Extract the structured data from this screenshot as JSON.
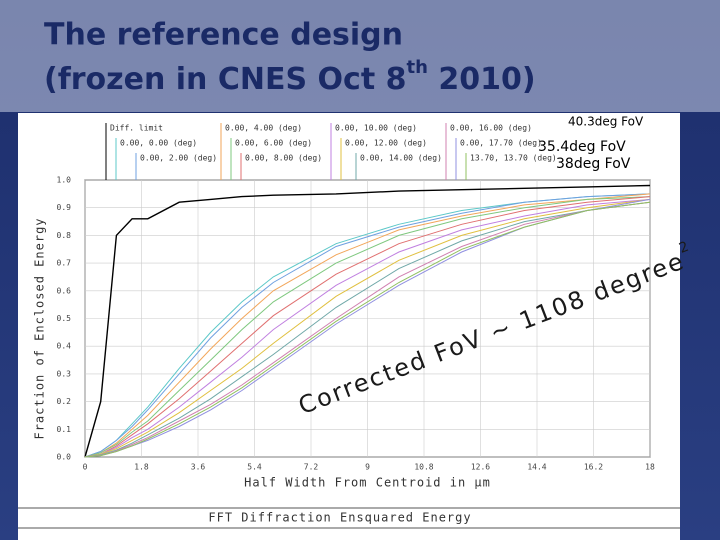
{
  "slide": {
    "title_line1": "The reference design",
    "title_line2": "(frozen in CNES Oct 8",
    "title_sup": "th",
    "title_line2_end": " 2010)"
  },
  "chart_data": {
    "type": "line",
    "title": "FFT Diffraction Ensquared Energy",
    "xlabel": "Half Width From Centroid in µm",
    "ylabel": "Fraction of Enclosed Energy",
    "xlim": [
      0,
      18
    ],
    "xticks": [
      0,
      1.8,
      3.6,
      5.4,
      7.2,
      9,
      10.8,
      12.6,
      14.4,
      16.2,
      18
    ],
    "ylim": [
      0,
      1
    ],
    "yticks": [
      {
        "value": 0,
        "label": "0.0"
      },
      0.1,
      0.2,
      0.3,
      0.4,
      0.5,
      0.6,
      0.7,
      0.8,
      0.9,
      {
        "value": 1,
        "label": "1.0"
      }
    ],
    "grid": true,
    "annotations": [
      "40.3deg FoV",
      "35.4deg FoV",
      "38deg FoV"
    ],
    "fov_note": "Corrected FoV ~ 1108 degree",
    "fov_note_sup": "2",
    "x": [
      0,
      0.5,
      1,
      1.5,
      2,
      3,
      4,
      5,
      6,
      8,
      10,
      12,
      14,
      16,
      18
    ],
    "series": [
      {
        "name": "Diff. limit",
        "color": "#000000",
        "values": [
          0,
          0.2,
          0.8,
          0.86,
          0.86,
          0.92,
          0.93,
          0.94,
          0.945,
          0.95,
          0.96,
          0.965,
          0.97,
          0.975,
          0.98
        ]
      },
      {
        "name": "0.00, 0.00 (deg)",
        "color": "#5cc8c8",
        "values": [
          0,
          0.02,
          0.06,
          0.12,
          0.18,
          0.32,
          0.45,
          0.56,
          0.65,
          0.77,
          0.84,
          0.89,
          0.92,
          0.94,
          0.95
        ]
      },
      {
        "name": "0.00, 2.00 (deg)",
        "color": "#6fa0e0",
        "values": [
          0,
          0.02,
          0.06,
          0.11,
          0.17,
          0.3,
          0.43,
          0.54,
          0.63,
          0.76,
          0.83,
          0.88,
          0.92,
          0.94,
          0.95
        ]
      },
      {
        "name": "0.00, 4.00 (deg)",
        "color": "#f2a65a",
        "values": [
          0,
          0.015,
          0.05,
          0.1,
          0.15,
          0.27,
          0.39,
          0.5,
          0.6,
          0.73,
          0.82,
          0.87,
          0.91,
          0.93,
          0.95
        ]
      },
      {
        "name": "0.00, 6.00 (deg)",
        "color": "#7fc87f",
        "values": [
          0,
          0.015,
          0.045,
          0.09,
          0.13,
          0.24,
          0.35,
          0.46,
          0.56,
          0.7,
          0.8,
          0.86,
          0.9,
          0.93,
          0.94
        ]
      },
      {
        "name": "0.00, 8.00 (deg)",
        "color": "#e07070",
        "values": [
          0,
          0.01,
          0.04,
          0.08,
          0.12,
          0.21,
          0.31,
          0.41,
          0.51,
          0.66,
          0.77,
          0.84,
          0.89,
          0.92,
          0.94
        ]
      },
      {
        "name": "0.00, 10.00 (deg)",
        "color": "#c080e0",
        "values": [
          0,
          0.01,
          0.035,
          0.07,
          0.1,
          0.18,
          0.27,
          0.36,
          0.46,
          0.62,
          0.74,
          0.82,
          0.87,
          0.91,
          0.93
        ]
      },
      {
        "name": "0.00, 12.00 (deg)",
        "color": "#e0c040",
        "values": [
          0,
          0.01,
          0.03,
          0.06,
          0.09,
          0.16,
          0.24,
          0.32,
          0.41,
          0.58,
          0.71,
          0.8,
          0.86,
          0.9,
          0.93
        ]
      },
      {
        "name": "0.00, 14.00 (deg)",
        "color": "#70a8a8",
        "values": [
          0,
          0.008,
          0.025,
          0.05,
          0.08,
          0.14,
          0.21,
          0.29,
          0.37,
          0.54,
          0.68,
          0.78,
          0.85,
          0.89,
          0.92
        ]
      },
      {
        "name": "0.00, 16.00 (deg)",
        "color": "#d080b0",
        "values": [
          0,
          0.006,
          0.022,
          0.045,
          0.07,
          0.13,
          0.19,
          0.26,
          0.34,
          0.5,
          0.65,
          0.76,
          0.84,
          0.89,
          0.92
        ]
      },
      {
        "name": "0.00, 17.70 (deg)",
        "color": "#9090e0",
        "values": [
          0,
          0.005,
          0.02,
          0.04,
          0.06,
          0.11,
          0.17,
          0.24,
          0.32,
          0.48,
          0.62,
          0.74,
          0.83,
          0.89,
          0.93
        ]
      },
      {
        "name": "13.70, 13.70 (deg)",
        "color": "#90c060",
        "values": [
          0,
          0.005,
          0.02,
          0.04,
          0.065,
          0.12,
          0.18,
          0.25,
          0.33,
          0.49,
          0.63,
          0.75,
          0.83,
          0.89,
          0.92
        ]
      }
    ]
  }
}
